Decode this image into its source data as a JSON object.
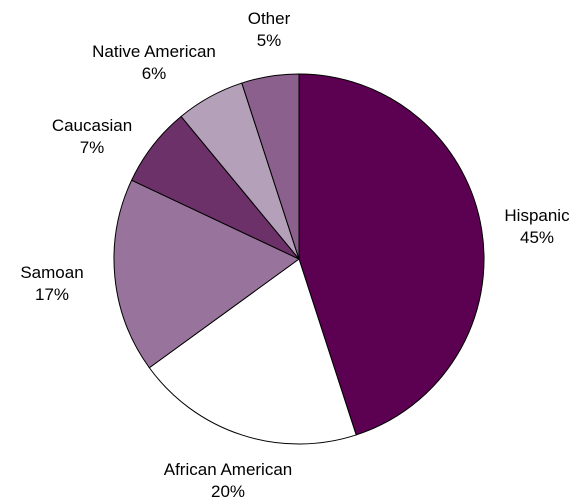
{
  "chart_data": {
    "type": "pie",
    "title": "",
    "slices": [
      {
        "label": "Hispanic",
        "value": 45,
        "percent_label": "45%",
        "color": "#5c0052"
      },
      {
        "label": "African American",
        "value": 20,
        "percent_label": "20%",
        "color": "#ffffff"
      },
      {
        "label": "Samoan",
        "value": 17,
        "percent_label": "17%",
        "color": "#98739b"
      },
      {
        "label": "Caucasian",
        "value": 7,
        "percent_label": "7%",
        "color": "#6b3168"
      },
      {
        "label": "Native American",
        "value": 6,
        "percent_label": "6%",
        "color": "#b5a0b9"
      },
      {
        "label": "Other",
        "value": 5,
        "percent_label": "5%",
        "color": "#8c608c"
      }
    ],
    "start_position": "12 o'clock",
    "direction": "clockwise",
    "slice_border_color": "#000000"
  }
}
